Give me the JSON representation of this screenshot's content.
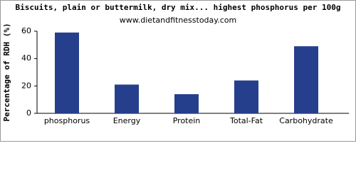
{
  "chart_data": {
    "type": "bar",
    "title": "Biscuits, plain or buttermilk, dry mix... highest phosphorus per 100g",
    "subtitle": "www.dietandfitnesstoday.com",
    "y_label": "Percentage of RDH (%)",
    "categories": [
      "phosphorus",
      "Energy",
      "Protein",
      "Total-Fat",
      "Carbohydrate"
    ],
    "values": [
      59,
      21,
      14,
      24,
      49
    ],
    "color": "#263f8c",
    "ylim": [
      0,
      60
    ],
    "yticks": [
      0,
      20,
      40,
      60
    ],
    "grid": false
  }
}
